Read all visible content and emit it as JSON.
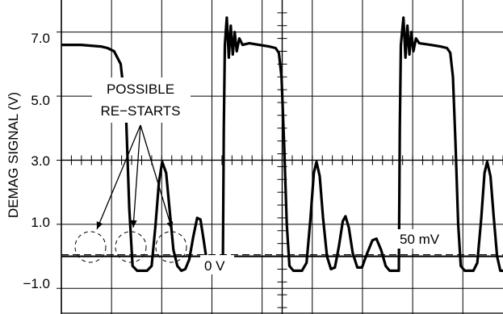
{
  "chart_data": {
    "type": "line",
    "ylabel": "DEMAG SIGNAL (V)",
    "ylim": [
      -1.8,
      8.0
    ],
    "y_ticks": [
      {
        "value": 7.0,
        "label": "7.0"
      },
      {
        "value": 5.0,
        "label": "5.0"
      },
      {
        "value": 3.0,
        "label": "3.0"
      },
      {
        "value": 1.0,
        "label": "1.0"
      },
      {
        "value": -1.0,
        "label": "−1.0"
      }
    ],
    "grid": true,
    "annotations": {
      "possible_restarts_line1": "POSSIBLE",
      "possible_restarts_line2": "RE−STARTS",
      "zero_volt": "0 V",
      "threshold": "50 mV"
    },
    "reference_lines": [
      {
        "name": "0 V",
        "value": 0.0,
        "style": "solid"
      },
      {
        "name": "50 mV",
        "value": 0.05,
        "style": "dashed"
      }
    ],
    "series": [
      {
        "points": [
          [
            0,
            6.6
          ],
          [
            3,
            6.6
          ],
          [
            6,
            6.55
          ],
          [
            7,
            6.5
          ],
          [
            8,
            6.4
          ],
          [
            9,
            6.0
          ],
          [
            9.8,
            4.5
          ],
          [
            10.3,
            1.5
          ],
          [
            10.8,
            -0.3
          ],
          [
            11.5,
            -0.45
          ],
          [
            13,
            -0.45
          ],
          [
            13.7,
            -0.3
          ],
          [
            14.3,
            1.0
          ],
          [
            14.8,
            2.3
          ],
          [
            15.3,
            2.95
          ],
          [
            15.9,
            2.6
          ],
          [
            16.4,
            1.5
          ],
          [
            17,
            0.2
          ],
          [
            17.6,
            -0.3
          ],
          [
            18.2,
            -0.45
          ],
          [
            18.8,
            -0.4
          ],
          [
            19.4,
            -0.1
          ],
          [
            20,
            0.6
          ],
          [
            20.6,
            1.2
          ],
          [
            21.1,
            1.15
          ],
          [
            21.6,
            0.5
          ],
          [
            22.1,
            -0.2
          ],
          [
            22.8,
            -0.45
          ],
          [
            24.5,
            -0.45
          ],
          [
            24.65,
            4.0
          ],
          [
            24.8,
            6.6
          ],
          [
            25.1,
            7.45
          ],
          [
            25.4,
            6.2
          ],
          [
            25.7,
            7.2
          ],
          [
            26.0,
            6.3
          ],
          [
            26.3,
            7.0
          ],
          [
            26.6,
            6.4
          ],
          [
            27,
            6.8
          ],
          [
            27.5,
            6.6
          ],
          [
            28.5,
            6.65
          ],
          [
            30,
            6.6
          ],
          [
            31.5,
            6.55
          ],
          [
            32.5,
            6.5
          ],
          [
            33.0,
            6.35
          ],
          [
            33.4,
            5.6
          ],
          [
            33.8,
            3.5
          ],
          [
            34.2,
            1.0
          ],
          [
            34.6,
            -0.3
          ],
          [
            35.2,
            -0.45
          ],
          [
            36.5,
            -0.45
          ],
          [
            37.2,
            -0.2
          ],
          [
            37.8,
            1.2
          ],
          [
            38.3,
            2.6
          ],
          [
            38.7,
            2.95
          ],
          [
            39.2,
            2.5
          ],
          [
            39.7,
            1.2
          ],
          [
            40.3,
            0.0
          ],
          [
            40.9,
            -0.4
          ],
          [
            41.5,
            -0.35
          ],
          [
            42.1,
            0.3
          ],
          [
            42.7,
            1.1
          ],
          [
            43.1,
            1.25
          ],
          [
            43.6,
            0.9
          ],
          [
            44.2,
            0.1
          ],
          [
            44.9,
            -0.35
          ],
          [
            45.6,
            -0.35
          ],
          [
            46.4,
            0.1
          ],
          [
            47.2,
            0.5
          ],
          [
            47.8,
            0.55
          ],
          [
            48.5,
            0.2
          ],
          [
            49.2,
            -0.3
          ],
          [
            49.8,
            -0.45
          ],
          [
            51.2,
            -0.45
          ],
          [
            51.35,
            4.0
          ],
          [
            51.5,
            6.6
          ],
          [
            51.9,
            7.45
          ],
          [
            52.2,
            6.2
          ],
          [
            52.5,
            7.2
          ],
          [
            52.8,
            6.3
          ],
          [
            53.1,
            7.0
          ],
          [
            53.4,
            6.4
          ],
          [
            53.8,
            6.8
          ],
          [
            54.3,
            6.65
          ],
          [
            56,
            6.6
          ],
          [
            57.5,
            6.55
          ],
          [
            58.5,
            6.5
          ],
          [
            59.0,
            6.35
          ],
          [
            59.4,
            5.6
          ],
          [
            59.8,
            3.5
          ],
          [
            60.2,
            1.0
          ],
          [
            60.6,
            -0.3
          ],
          [
            61.2,
            -0.45
          ],
          [
            62.5,
            -0.45
          ],
          [
            63.1,
            -0.2
          ],
          [
            63.7,
            1.2
          ],
          [
            64.2,
            2.6
          ],
          [
            64.6,
            2.95
          ],
          [
            65.1,
            2.5
          ],
          [
            65.6,
            1.2
          ],
          [
            66.1,
            0.0
          ],
          [
            66.6,
            -0.45
          ],
          [
            67,
            -0.45
          ]
        ]
      }
    ]
  }
}
